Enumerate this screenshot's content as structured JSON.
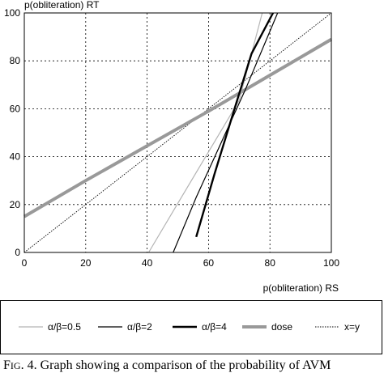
{
  "chart_data": {
    "type": "line",
    "xlabel": "p(obliteration) RS",
    "ylabel": "p(obliteration) RT",
    "xlim": [
      0,
      100
    ],
    "ylim": [
      0,
      100
    ],
    "xticks": [
      0,
      20,
      40,
      60,
      80,
      100
    ],
    "yticks": [
      0,
      20,
      40,
      60,
      80,
      100
    ],
    "grid": true,
    "legend_position": "bottom",
    "series": [
      {
        "name": "α/β=0.5",
        "color": "#b4b4b4",
        "width": 1.2,
        "style": "solid",
        "x": [
          40.5,
          50,
          60,
          70,
          77.5
        ],
        "y": [
          0,
          20.5,
          42,
          63.5,
          100
        ]
      },
      {
        "name": "α/β=2",
        "color": "#000000",
        "width": 1.2,
        "style": "solid",
        "x": [
          48.5,
          56,
          64,
          72,
          82.5
        ],
        "y": [
          0,
          23,
          45.5,
          68,
          100
        ]
      },
      {
        "name": "α/β=4",
        "color": "#000000",
        "width": 2.4,
        "style": "solid",
        "x": [
          56,
          62,
          68,
          74,
          81
        ],
        "y": [
          6.5,
          33,
          58,
          83,
          100
        ]
      },
      {
        "name": "dose",
        "color": "#999999",
        "width": 4,
        "style": "solid",
        "x": [
          0,
          20,
          40,
          60,
          80,
          100
        ],
        "y": [
          15,
          30,
          44.5,
          59,
          74,
          89
        ]
      },
      {
        "name": "x=y",
        "color": "#000000",
        "width": 0.9,
        "style": "dotted",
        "x": [
          0,
          100
        ],
        "y": [
          0,
          100
        ]
      }
    ]
  },
  "caption": {
    "prefix": "F",
    "prefix_rest": "IG",
    "number": ". 4.",
    "text": "Graph showing a comparison of the probability of AVM"
  }
}
